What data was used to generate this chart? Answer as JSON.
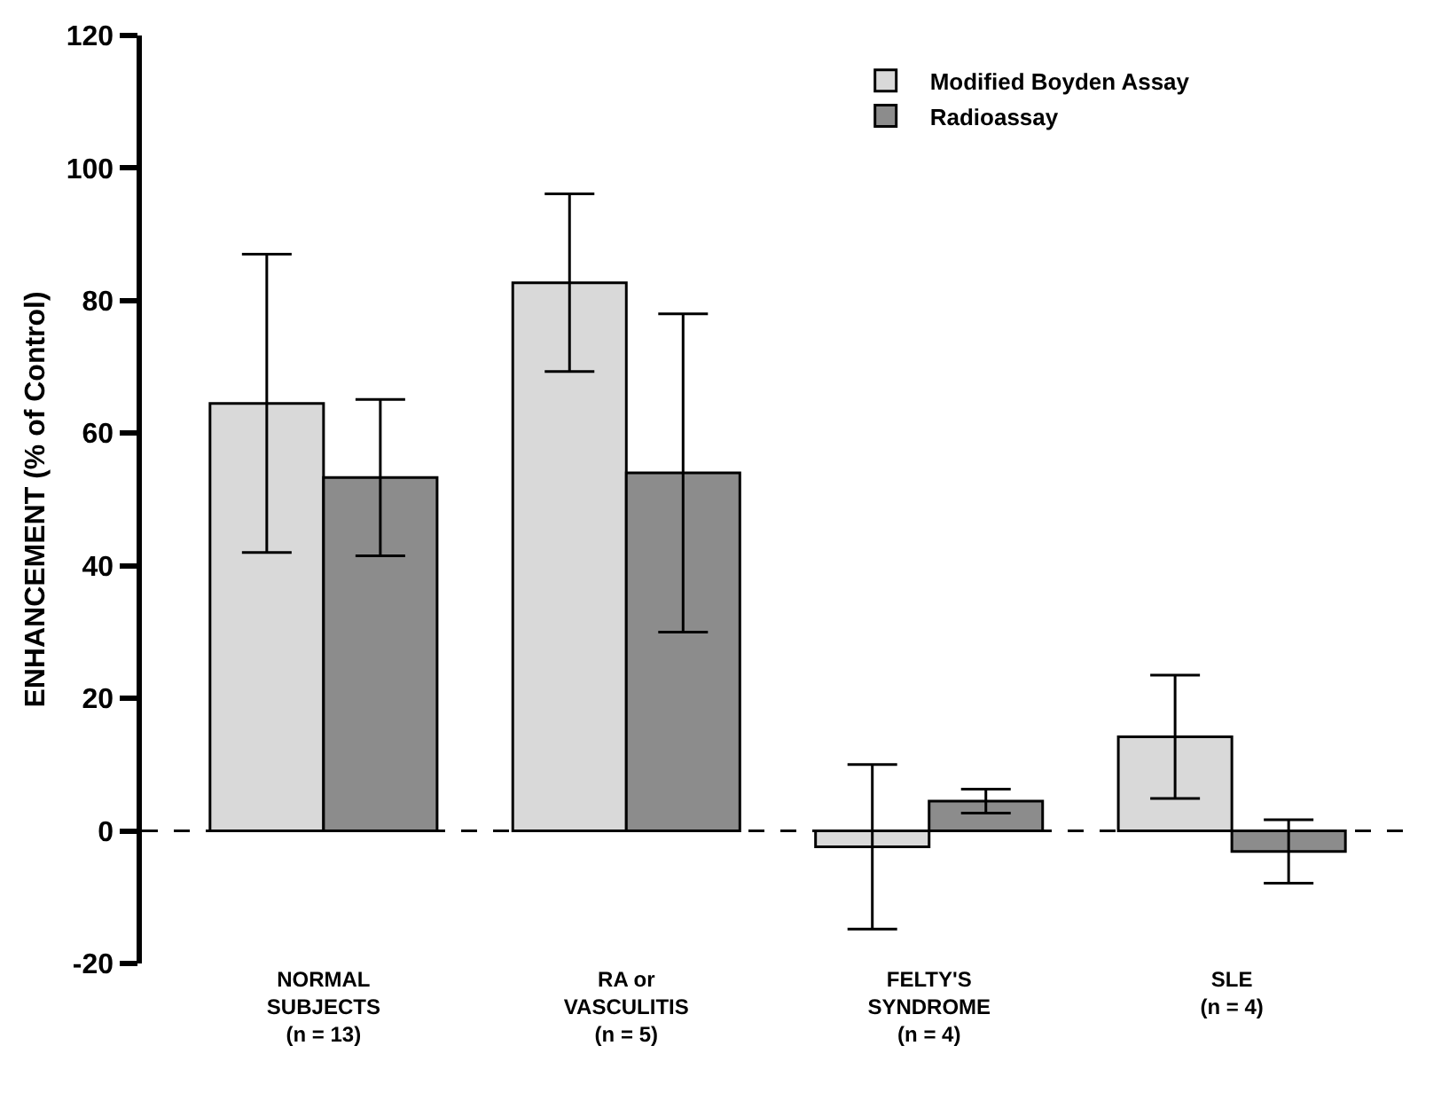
{
  "chart_data": {
    "type": "bar",
    "ylabel": "ENHANCEMENT (% of Control)",
    "categories": [
      "NORMAL\nSUBJECTS\n(n = 13)",
      "RA or\nVASCULITIS\n(n = 5)",
      "FELTY'S\nSYNDROME\n(n = 4)",
      "SLE\n(n = 4)"
    ],
    "series": [
      {
        "name": "Modified Boyden Assay",
        "color": "#d9d9d9",
        "values": [
          64.5,
          82.7,
          -2.4,
          14.2
        ],
        "errors": [
          22.5,
          13.4,
          12.4,
          9.3
        ]
      },
      {
        "name": "Radioassay",
        "color": "#8c8c8c",
        "values": [
          53.3,
          54,
          4.5,
          -3.1
        ],
        "errors": [
          11.8,
          24,
          1.8,
          4.8
        ]
      }
    ],
    "ylim": [
      -20,
      120
    ],
    "yticks": [
      -20,
      0,
      20,
      40,
      60,
      80,
      100,
      120
    ],
    "ref_lines": [
      {
        "axis": "y",
        "value": 0,
        "line_style": "dashed",
        "color": "#000000"
      }
    ],
    "grid": false,
    "legend": "top right"
  }
}
